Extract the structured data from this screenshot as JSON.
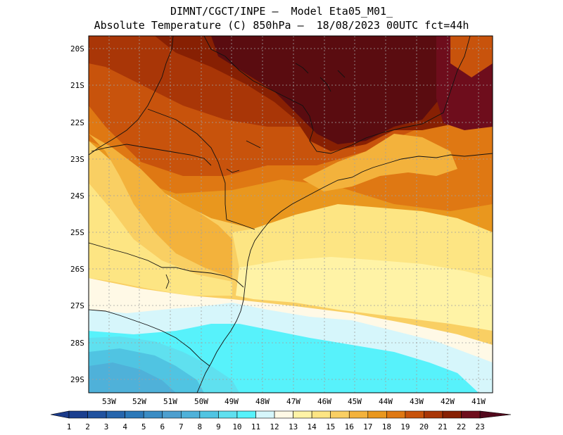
{
  "title": {
    "line1": "DIMNT/CGCT/INPE –  Model Eta05_M01_",
    "line2": "Absolute Temperature (C) 850hPa –  18/08/2023 00UTC fct=44h"
  },
  "lat_labels": [
    "20S",
    "21S",
    "22S",
    "23S",
    "24S",
    "25S",
    "26S",
    "27S",
    "28S",
    "29S"
  ],
  "lon_labels": [
    "53W",
    "52W",
    "51W",
    "50W",
    "49W",
    "48W",
    "47W",
    "46W",
    "45W",
    "44W",
    "43W",
    "42W",
    "41W"
  ],
  "colorbar": {
    "labels": [
      "1",
      "2",
      "3",
      "4",
      "5",
      "6",
      "7",
      "8",
      "9",
      "10",
      "11",
      "12",
      "13",
      "14",
      "15",
      "16",
      "17",
      "18",
      "19",
      "20",
      "21",
      "22",
      "23"
    ],
    "colors": [
      "#1b3f8f",
      "#21529f",
      "#2766ad",
      "#2c79b9",
      "#3a8cc4",
      "#4d9fcf",
      "#4fb1d9",
      "#50c4e2",
      "#5fe0ef",
      "#57f2fb",
      "#d6f6fb",
      "#fff9e6",
      "#fff3a6",
      "#fde583",
      "#f9cf63",
      "#f3b23c",
      "#e9971e",
      "#df7813",
      "#c8530c",
      "#a93607",
      "#872003",
      "#6e0d1c",
      "#5a0c10"
    ],
    "min_arrow_color": "#1b3b8a",
    "max_arrow_color": "#52081c"
  }
}
